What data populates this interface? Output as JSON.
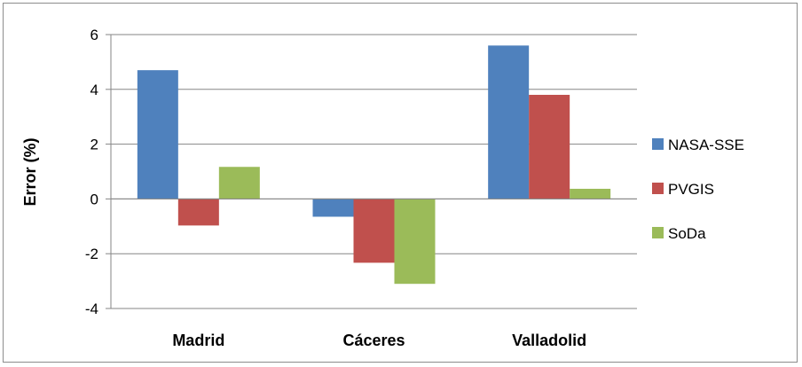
{
  "chart_data": {
    "type": "bar",
    "title": "",
    "xlabel": "",
    "ylabel": "Error (%)",
    "ylim": [
      -4,
      6
    ],
    "yticks": [
      6,
      4,
      2,
      0,
      -2,
      -4
    ],
    "grid": true,
    "legend": "right",
    "categories": [
      "Madrid",
      "Cáceres",
      "Valladolid"
    ],
    "series": [
      {
        "name": "NASA-SSE",
        "color": "#4f81bd",
        "values": [
          4.7,
          -0.65,
          5.6
        ]
      },
      {
        "name": "PVGIS",
        "color": "#c0504d",
        "values": [
          -0.97,
          -2.33,
          3.8
        ]
      },
      {
        "name": "SoDa",
        "color": "#9bbb59",
        "values": [
          1.17,
          -3.1,
          0.37
        ]
      }
    ]
  }
}
